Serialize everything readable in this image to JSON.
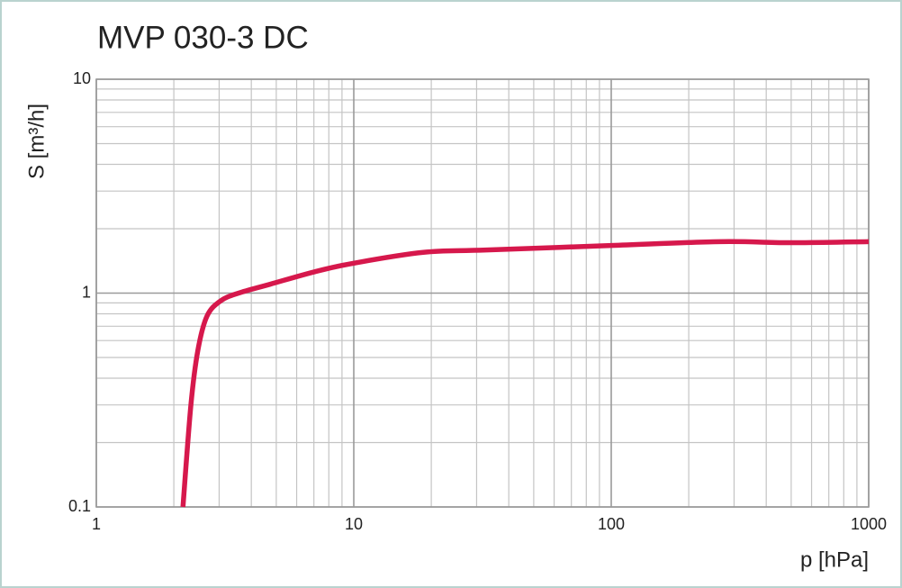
{
  "chart_data": {
    "type": "line",
    "title": "MVP 030-3 DC",
    "x_label": "p  [hPa]",
    "y_label": "S  [m³/h]",
    "x_log": true,
    "y_log": true,
    "xlim": [
      1,
      1000
    ],
    "ylim": [
      0.1,
      10
    ],
    "xticks": [
      1,
      10,
      100,
      1000
    ],
    "yticks": [
      0.1,
      1,
      10
    ],
    "grid": true,
    "minor_grid": true,
    "series": [
      {
        "color": "#d6184c",
        "x": [
          2.17,
          2.33,
          2.48,
          2.69,
          3.04,
          3.57,
          4.73,
          7.08,
          10,
          18.6,
          32.7,
          100,
          265,
          502,
          1000
        ],
        "values": [
          0.1,
          0.3,
          0.54,
          0.78,
          0.92,
          1.0,
          1.1,
          1.26,
          1.38,
          1.55,
          1.59,
          1.67,
          1.74,
          1.72,
          1.74
        ]
      }
    ]
  }
}
